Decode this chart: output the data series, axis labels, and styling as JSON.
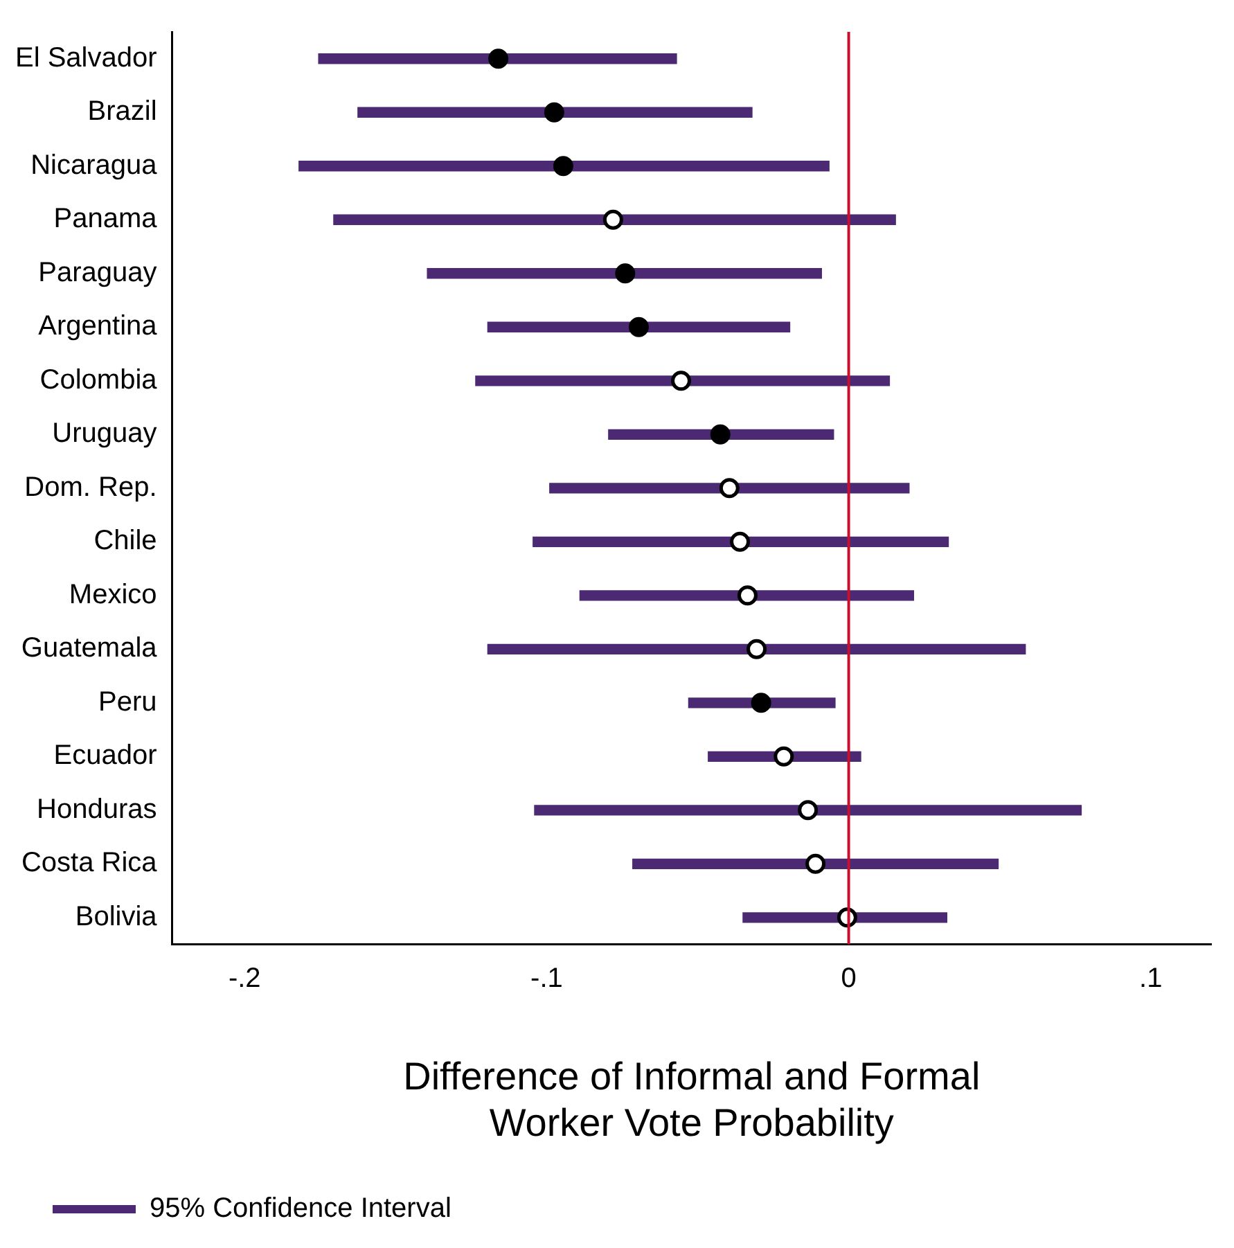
{
  "chart_data": {
    "type": "scatter",
    "orientation": "horizontal",
    "xlabel": "Difference of Informal and Formal\nWorker Vote Probability",
    "categories": [
      "El Salvador",
      "Brazil",
      "Nicaragua",
      "Panama",
      "Paraguay",
      "Argentina",
      "Colombia",
      "Uruguay",
      "Dom. Rep.",
      "Chile",
      "Mexico",
      "Guatemala",
      "Peru",
      "Ecuador",
      "Honduras",
      "Costa Rica",
      "Bolivia"
    ],
    "series": [
      {
        "type": "bar",
        "name": "95% Confidence Interval",
        "color": "#4b2a73",
        "base": [
          -0.1755,
          -0.1625,
          -0.182,
          -0.1705,
          -0.1395,
          -0.1195,
          -0.1235,
          -0.0795,
          -0.099,
          -0.1045,
          -0.089,
          -0.1195,
          -0.053,
          -0.0465,
          -0.104,
          -0.0715,
          -0.035
        ],
        "values": [
          0.1185,
          0.1305,
          0.1755,
          0.186,
          0.1305,
          0.1,
          0.137,
          0.0745,
          0.119,
          0.1375,
          0.1105,
          0.178,
          0.0485,
          0.0505,
          0.181,
          0.121,
          0.0675
        ]
      },
      {
        "color": "#000000",
        "colors": [
          "#000000",
          "#000000",
          "#000000",
          "#ffffff",
          "#000000",
          "#000000",
          "#ffffff",
          "#000000",
          "#ffffff",
          "#ffffff",
          "#ffffff",
          "#ffffff",
          "#000000",
          "#ffffff",
          "#ffffff",
          "#ffffff",
          "#ffffff"
        ],
        "values": [
          -0.116,
          -0.0975,
          -0.0945,
          -0.078,
          -0.074,
          -0.0695,
          -0.0555,
          -0.0425,
          -0.0395,
          -0.036,
          -0.0335,
          -0.0305,
          -0.029,
          -0.0215,
          -0.0135,
          -0.011,
          -0.0005
        ]
      }
    ],
    "xlim": [
      -0.224,
      0.12
    ],
    "xticks": [
      {
        "value": -0.2,
        "label": "-.2"
      },
      {
        "value": -0.1,
        "label": "-.1"
      },
      0,
      {
        "value": 0.1,
        "label": ".1"
      }
    ],
    "ref_lines": [
      {
        "axis": "x",
        "value": 0,
        "color": "#c8102e"
      }
    ],
    "grid": false,
    "legend": "bottom left",
    "marker": "circle"
  }
}
